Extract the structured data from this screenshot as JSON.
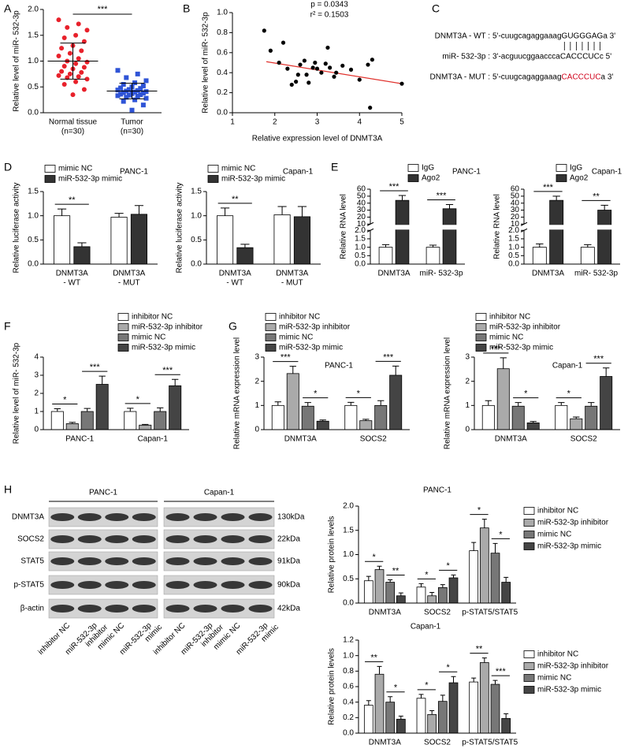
{
  "panel_labels": [
    "A",
    "B",
    "C",
    "D",
    "E",
    "F",
    "G",
    "H"
  ],
  "chart_data": [
    {
      "type": "dot",
      "ylabel": "Relative level of miR- 532-3p",
      "categories": [
        [
          "Normal tissue",
          "(n=30)"
        ],
        [
          "Tumor",
          "(n=30)"
        ]
      ],
      "colors": [
        "#e8212b",
        "#2f54d6"
      ],
      "markers": [
        "circle",
        "square"
      ],
      "values": [
        [
          1.8,
          1.72,
          1.65,
          1.6,
          1.5,
          1.45,
          1.38,
          1.3,
          1.25,
          1.2,
          1.15,
          1.1,
          1.05,
          1.0,
          0.98,
          0.95,
          0.9,
          0.88,
          0.85,
          0.8,
          0.78,
          0.75,
          0.72,
          0.7,
          0.68,
          0.65,
          0.6,
          0.55,
          0.45,
          0.35
        ],
        [
          0.82,
          0.75,
          0.68,
          0.62,
          0.58,
          0.55,
          0.52,
          0.5,
          0.48,
          0.47,
          0.45,
          0.44,
          0.43,
          0.42,
          0.41,
          0.4,
          0.39,
          0.38,
          0.37,
          0.36,
          0.35,
          0.34,
          0.33,
          0.32,
          0.3,
          0.28,
          0.25,
          0.22,
          0.15,
          0.05
        ]
      ],
      "means": [
        1.0,
        0.42
      ],
      "sds": [
        0.35,
        0.15
      ],
      "significance": "***",
      "ylim": [
        0,
        2
      ],
      "yticks": [
        {
          "value": 0,
          "label": "0.0"
        },
        0.5,
        {
          "value": 1,
          "label": "1.0"
        },
        1.5,
        {
          "value": 2,
          "label": "2.0"
        }
      ]
    },
    {
      "type": "scatter",
      "xlabel": "Relative expression level of DNMT3A",
      "ylabel": "Relative level of miR- 532-3p",
      "annotations": [
        "p = 0.0343",
        "r² = 0.1503"
      ],
      "color": "#000000",
      "x": [
        1.75,
        1.9,
        2.2,
        2.1,
        2.3,
        2.4,
        2.5,
        2.55,
        2.6,
        2.7,
        2.75,
        2.8,
        2.9,
        2.95,
        3.0,
        3.1,
        3.2,
        3.25,
        3.3,
        3.4,
        3.45,
        3.6,
        3.8,
        4.0,
        4.2,
        4.25,
        4.3,
        5.0
      ],
      "y": [
        0.82,
        0.62,
        0.7,
        0.5,
        0.44,
        0.28,
        0.31,
        0.38,
        0.48,
        0.52,
        0.38,
        0.3,
        0.45,
        0.5,
        0.44,
        0.4,
        0.49,
        0.65,
        0.45,
        0.36,
        0.4,
        0.47,
        0.43,
        0.33,
        0.48,
        0.05,
        0.53,
        0.29
      ],
      "fit_line": {
        "x": [
          1.8,
          5
        ],
        "y": [
          0.51,
          0.29
        ],
        "color": "#e0312c"
      },
      "xlim": [
        1,
        5
      ],
      "xticks": [
        1,
        2,
        3,
        4,
        5
      ],
      "ylim": [
        0,
        1
      ],
      "yticks": [
        {
          "value": 0,
          "label": "0.0"
        },
        0.2,
        0.4,
        0.6,
        0.8,
        {
          "value": 1,
          "label": "1.0"
        }
      ]
    },
    {
      "type": "bar",
      "title": "PANC-1",
      "ylabel": "Relative luciferase activity",
      "categories": [
        [
          "DNMT3A",
          "- WT"
        ],
        [
          "DNMT3A",
          "- MUT"
        ]
      ],
      "series": [
        {
          "name": "mimic NC",
          "color": "#ffffff",
          "values": [
            1.0,
            0.97
          ],
          "errors": [
            0.14,
            0.08
          ]
        },
        {
          "name": "miR-532-3p mimic",
          "color": "#333333",
          "values": [
            0.36,
            1.03
          ],
          "errors": [
            0.08,
            0.18
          ]
        }
      ],
      "significance": [
        [
          "**"
        ],
        []
      ],
      "ylim": [
        0,
        1.5
      ],
      "yticks": [
        {
          "value": 0,
          "label": "0.0"
        },
        0.5,
        {
          "value": 1,
          "label": "1.0"
        },
        1.5
      ]
    },
    {
      "type": "bar",
      "title": "Capan-1",
      "ylabel": "Relative luciferase activity",
      "categories": [
        [
          "DNMT3A",
          "- WT"
        ],
        [
          "DNMT3A",
          "- MUT"
        ]
      ],
      "series": [
        {
          "name": "mimic NC",
          "color": "#ffffff",
          "values": [
            1.0,
            1.02
          ],
          "errors": [
            0.16,
            0.17
          ]
        },
        {
          "name": "miR-532-3p mimic",
          "color": "#333333",
          "values": [
            0.34,
            0.98
          ],
          "errors": [
            0.07,
            0.21
          ]
        }
      ],
      "significance": [
        [
          "**"
        ],
        []
      ],
      "ylim": [
        0,
        1.5
      ],
      "yticks": [
        {
          "value": 0,
          "label": "0.0"
        },
        0.5,
        {
          "value": 1,
          "label": "1.0"
        },
        1.5
      ]
    },
    {
      "type": "bar",
      "title": "PANC-1",
      "ylabel": "Relative RNA level",
      "categories": [
        "DNMT3A",
        "miR- 532-3p"
      ],
      "series": [
        {
          "name": "IgG",
          "color": "#ffffff",
          "values": [
            1.0,
            1.0
          ],
          "errors": [
            0.15,
            0.12
          ]
        },
        {
          "name": "Ago2",
          "color": "#333333",
          "values": [
            44,
            32
          ],
          "errors": [
            7,
            6
          ]
        }
      ],
      "significance": [
        [
          "***"
        ],
        [
          "***"
        ]
      ],
      "ylim": [
        0,
        60
      ],
      "ybreak": [
        2,
        10
      ],
      "yticks": [
        {
          "value": 0,
          "label": "0.0"
        },
        0.5,
        {
          "value": 1,
          "label": "1.0"
        },
        1.5,
        {
          "value": 2,
          "label": "2.0"
        },
        10,
        20,
        30,
        40,
        50,
        60
      ]
    },
    {
      "type": "bar",
      "title": "Capan-1",
      "ylabel": "Relative RNA level",
      "categories": [
        "DNMT3A",
        "miR- 532-3p"
      ],
      "series": [
        {
          "name": "IgG",
          "color": "#ffffff",
          "values": [
            1.0,
            1.0
          ],
          "errors": [
            0.2,
            0.15
          ]
        },
        {
          "name": "Ago2",
          "color": "#333333",
          "values": [
            44,
            30
          ],
          "errors": [
            6,
            7
          ]
        }
      ],
      "significance": [
        [
          "***"
        ],
        [
          "**"
        ]
      ],
      "ylim": [
        0,
        60
      ],
      "ybreak": [
        2,
        10
      ],
      "yticks": [
        {
          "value": 0,
          "label": "0.0"
        },
        0.5,
        {
          "value": 1,
          "label": "1.0"
        },
        1.5,
        {
          "value": 2,
          "label": "2.0"
        },
        10,
        20,
        30,
        40,
        50,
        60
      ]
    },
    {
      "type": "bar",
      "ylabel": "Relative level of miR- 532-3p",
      "categories": [
        "PANC-1",
        "Capan-1"
      ],
      "series": [
        {
          "name": "inhibitor NC",
          "color": "#ffffff",
          "values": [
            1.0,
            1.0
          ],
          "errors": [
            0.15,
            0.18
          ]
        },
        {
          "name": "miR-532-3p inhibitor",
          "color": "#aaaaaa",
          "values": [
            0.33,
            0.25
          ],
          "errors": [
            0.07,
            0.04
          ]
        },
        {
          "name": "mimic NC",
          "color": "#777777",
          "values": [
            1.0,
            1.0
          ],
          "errors": [
            0.17,
            0.2
          ]
        },
        {
          "name": "miR-532-3p mimic",
          "color": "#444444",
          "values": [
            2.5,
            2.42
          ],
          "errors": [
            0.45,
            0.35
          ]
        }
      ],
      "significance": [
        [
          "*",
          "***"
        ],
        [
          "*",
          "***"
        ]
      ],
      "ylim": [
        0,
        4
      ],
      "yticks": [
        0,
        1,
        2,
        3,
        4
      ]
    },
    {
      "type": "bar",
      "title": "PANC-1",
      "ylabel": "Relative mRNA expression level",
      "categories": [
        "DNMT3A",
        "SOCS2"
      ],
      "series": [
        {
          "name": "inhibitor NC",
          "color": "#ffffff",
          "values": [
            1.0,
            1.0
          ],
          "errors": [
            0.15,
            0.13
          ]
        },
        {
          "name": "miR-532-3p inhibitor",
          "color": "#aaaaaa",
          "values": [
            2.32,
            0.37
          ],
          "errors": [
            0.3,
            0.06
          ]
        },
        {
          "name": "mimic NC",
          "color": "#777777",
          "values": [
            0.97,
            1.0
          ],
          "errors": [
            0.15,
            0.2
          ]
        },
        {
          "name": "miR-532-3p mimic",
          "color": "#444444",
          "values": [
            0.35,
            2.25
          ],
          "errors": [
            0.05,
            0.38
          ]
        }
      ],
      "significance": [
        [
          "***",
          "*"
        ],
        [
          "*",
          "***"
        ]
      ],
      "ylim": [
        0,
        3
      ],
      "yticks": [
        0,
        1,
        2,
        3
      ]
    },
    {
      "type": "bar",
      "title": "Capan-1",
      "ylabel": "Relative mRNA expression level",
      "categories": [
        "DNMT3A",
        "SOCS2"
      ],
      "series": [
        {
          "name": "inhibitor NC",
          "color": "#ffffff",
          "values": [
            1.0,
            1.0
          ],
          "errors": [
            0.2,
            0.12
          ]
        },
        {
          "name": "miR-532-3p inhibitor",
          "color": "#aaaaaa",
          "values": [
            2.52,
            0.45
          ],
          "errors": [
            0.45,
            0.07
          ]
        },
        {
          "name": "mimic NC",
          "color": "#777777",
          "values": [
            0.97,
            0.97
          ],
          "errors": [
            0.15,
            0.15
          ]
        },
        {
          "name": "miR-532-3p mimic",
          "color": "#444444",
          "values": [
            0.28,
            2.2
          ],
          "errors": [
            0.06,
            0.35
          ]
        }
      ],
      "significance": [
        [
          "***",
          "*"
        ],
        [
          "*",
          "***"
        ]
      ],
      "ylim": [
        0,
        3
      ],
      "yticks": [
        0,
        1,
        2,
        3
      ]
    },
    {
      "type": "bar",
      "title": "PANC-1",
      "ylabel": "Relative protein levels",
      "categories": [
        "DNMT3A",
        "SOCS2",
        "p-STAT5/STAT5"
      ],
      "series": [
        {
          "name": "inhibitor NC",
          "color": "#ffffff",
          "values": [
            0.46,
            0.33,
            1.08
          ],
          "errors": [
            0.09,
            0.07,
            0.17
          ]
        },
        {
          "name": "miR-532-3p inhibitor",
          "color": "#aaaaaa",
          "values": [
            0.69,
            0.15,
            1.55
          ],
          "errors": [
            0.07,
            0.07,
            0.18
          ]
        },
        {
          "name": "mimic NC",
          "color": "#777777",
          "values": [
            0.43,
            0.32,
            1.03
          ],
          "errors": [
            0.05,
            0.06,
            0.2
          ]
        },
        {
          "name": "miR-532-3p mimic",
          "color": "#444444",
          "values": [
            0.15,
            0.52,
            0.43
          ],
          "errors": [
            0.06,
            0.06,
            0.1
          ]
        }
      ],
      "significance": [
        [
          "*",
          "**"
        ],
        [
          "*",
          "*"
        ],
        [
          "*",
          "*"
        ]
      ],
      "ylim": [
        0,
        2
      ],
      "yticks": [
        {
          "value": 0,
          "label": "0.0"
        },
        0.5,
        {
          "value": 1,
          "label": "1.0"
        },
        1.5,
        {
          "value": 2,
          "label": "2.0"
        }
      ]
    },
    {
      "type": "bar",
      "title": "Capan-1",
      "ylabel": "Relative protein levels",
      "categories": [
        "DNMT3A",
        "SOCS2",
        "p-STAT5/STAT5"
      ],
      "series": [
        {
          "name": "inhibitor NC",
          "color": "#ffffff",
          "values": [
            0.36,
            0.45,
            0.66
          ],
          "errors": [
            0.06,
            0.05,
            0.05
          ]
        },
        {
          "name": "miR-532-3p inhibitor",
          "color": "#aaaaaa",
          "values": [
            0.76,
            0.24,
            0.91
          ],
          "errors": [
            0.1,
            0.05,
            0.06
          ]
        },
        {
          "name": "mimic NC",
          "color": "#777777",
          "values": [
            0.4,
            0.41,
            0.63
          ],
          "errors": [
            0.07,
            0.08,
            0.05
          ]
        },
        {
          "name": "miR-532-3p mimic",
          "color": "#444444",
          "values": [
            0.18,
            0.65,
            0.19
          ],
          "errors": [
            0.04,
            0.08,
            0.06
          ]
        }
      ],
      "significance": [
        [
          "**",
          "*"
        ],
        [
          "*",
          "*"
        ],
        [
          "**",
          "***"
        ]
      ],
      "ylim": [
        0,
        1.2
      ],
      "yticks": [
        {
          "value": 0,
          "label": "0.0"
        },
        0.2,
        0.4,
        0.6,
        0.8,
        {
          "value": 1,
          "label": "1.0"
        },
        1.2
      ]
    }
  ],
  "sequence_panel": {
    "lines": [
      {
        "label": "DNMT3A - WT :",
        "prefix": "5'-cuugcagaggaaag",
        "site": "GUGGGAG",
        "suffix": "a 3'"
      },
      {
        "label": "miR- 532-3p :",
        "prefix": "3'-acguucggaaccca",
        "site": "CACCCUC",
        "suffix": "c 5'"
      },
      {
        "label": "DNMT3A - MUT :",
        "prefix": "5'-cuugcagaggaaag",
        "site": "CACCCUC",
        "suffix": "a 3'",
        "site_color": "#d0021b"
      }
    ]
  },
  "western_blot": {
    "cell_lines": [
      "PANC-1",
      "Capan-1"
    ],
    "proteins": [
      "DNMT3A",
      "SOCS2",
      "STAT5",
      "p-STAT5",
      "β-actin"
    ],
    "sizes": [
      "130kDa",
      "22kDa",
      "91kDa",
      "90kDa",
      "42kDa"
    ],
    "lanes": [
      [
        "inhibitor NC"
      ],
      [
        "miR-532-3p",
        "inhibitor"
      ],
      [
        "mimic NC"
      ],
      [
        "miR-532-3p",
        "mimic"
      ]
    ]
  }
}
